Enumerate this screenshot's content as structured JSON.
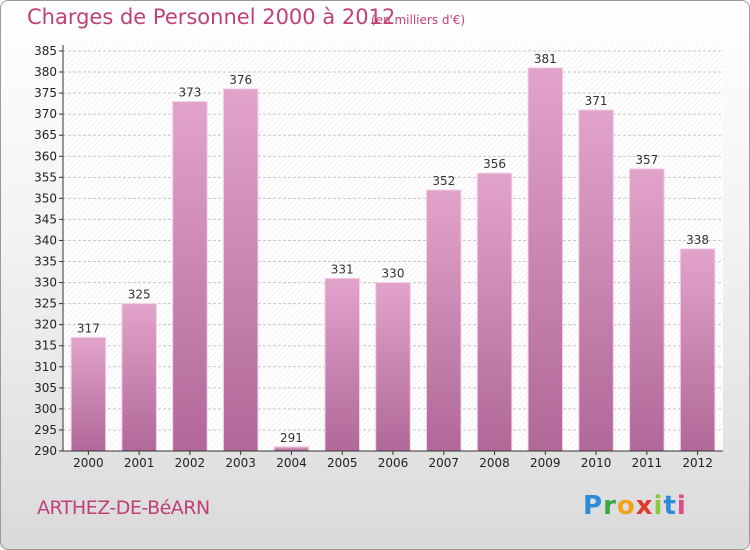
{
  "header": {
    "title": "Charges de Personnel 2000 à 2012",
    "unit": "(en milliers d'€)"
  },
  "footer": {
    "commune": "ARTHEZ-DE-BéARN",
    "logo_letters": [
      "P",
      "r",
      "o",
      "x",
      "i",
      "t",
      "i"
    ],
    "logo_colors": [
      "#2e8bd8",
      "#3aa64a",
      "#f2a21b",
      "#e03a2e",
      "#8dc63f",
      "#2e8bd8",
      "#e24a8a"
    ]
  },
  "chart_data": {
    "type": "bar",
    "title": "Charges de Personnel 2000 à 2012",
    "xlabel": "",
    "ylabel": "",
    "categories": [
      "2000",
      "2001",
      "2002",
      "2003",
      "2004",
      "2005",
      "2006",
      "2007",
      "2008",
      "2009",
      "2010",
      "2011",
      "2012"
    ],
    "values": [
      317,
      325,
      373,
      376,
      291,
      331,
      330,
      352,
      356,
      381,
      371,
      357,
      338
    ],
    "ylim": [
      290,
      385
    ],
    "ytick_step": 5,
    "grid": true,
    "bar_color_top": "#e2a3cb",
    "bar_color_bottom": "#b06898"
  }
}
